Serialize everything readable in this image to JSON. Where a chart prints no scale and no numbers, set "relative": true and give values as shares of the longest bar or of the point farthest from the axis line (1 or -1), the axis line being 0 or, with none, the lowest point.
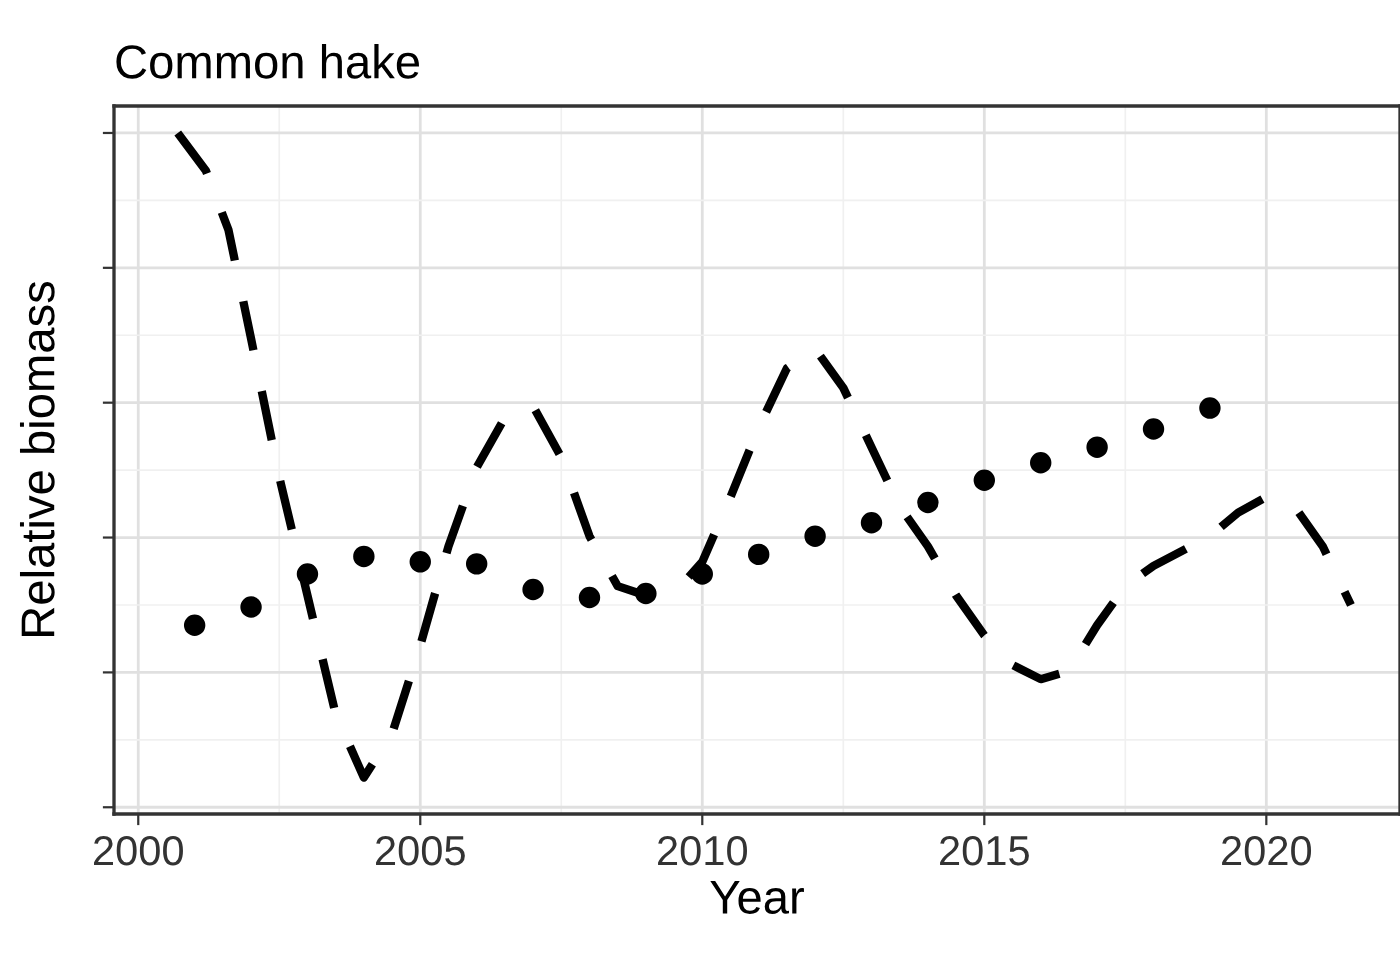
{
  "chart_data": {
    "type": "line",
    "title": "Common hake",
    "xlabel": "Year",
    "ylabel": "Relative biomass",
    "relative": true,
    "xlim": [
      1999.57,
      2022.37
    ],
    "xticks": [
      2000,
      2005,
      2010,
      2015,
      2020
    ],
    "tick_labels": "x",
    "grid": true,
    "series": [
      {
        "line_style": "dashed",
        "marker": "none",
        "color": "#000000",
        "x": [
          2000.7,
          2001.2,
          2001.6,
          2002,
          2002.5,
          2003,
          2003.5,
          2004,
          2004.5,
          2005,
          2005.5,
          2006,
          2006.5,
          2007,
          2007.5,
          2008,
          2008.5,
          2009,
          2009.5,
          2010,
          2010.5,
          2011,
          2011.5,
          2012,
          2012.5,
          2013,
          2013.5,
          2014,
          2014.5,
          2015,
          2015.5,
          2016,
          2016.5,
          2017,
          2017.5,
          2018,
          2019,
          2019.5,
          2020,
          2020.5,
          2021,
          2021.5
        ],
        "values": [
          1.0,
          0.944,
          0.856,
          0.695,
          0.49,
          0.314,
          0.138,
          0.044,
          0.109,
          0.24,
          0.387,
          0.504,
          0.578,
          0.595,
          0.519,
          0.402,
          0.328,
          0.314,
          0.317,
          0.364,
          0.46,
          0.563,
          0.651,
          0.68,
          0.622,
          0.534,
          0.446,
          0.387,
          0.314,
          0.255,
          0.211,
          0.19,
          0.202,
          0.27,
          0.328,
          0.358,
          0.402,
          0.437,
          0.46,
          0.446,
          0.387,
          0.3
        ]
      },
      {
        "type": "scatter",
        "marker": "circle",
        "color": "#000000",
        "x": [
          2001,
          2002,
          2003,
          2004,
          2005,
          2006,
          2007,
          2008,
          2009,
          2010,
          2011,
          2012,
          2013,
          2014,
          2015,
          2016,
          2017,
          2018,
          2019
        ],
        "values": [
          0.27,
          0.297,
          0.346,
          0.372,
          0.364,
          0.361,
          0.323,
          0.311,
          0.317,
          0.346,
          0.375,
          0.402,
          0.422,
          0.452,
          0.485,
          0.511,
          0.534,
          0.561,
          0.592
        ]
      }
    ]
  }
}
